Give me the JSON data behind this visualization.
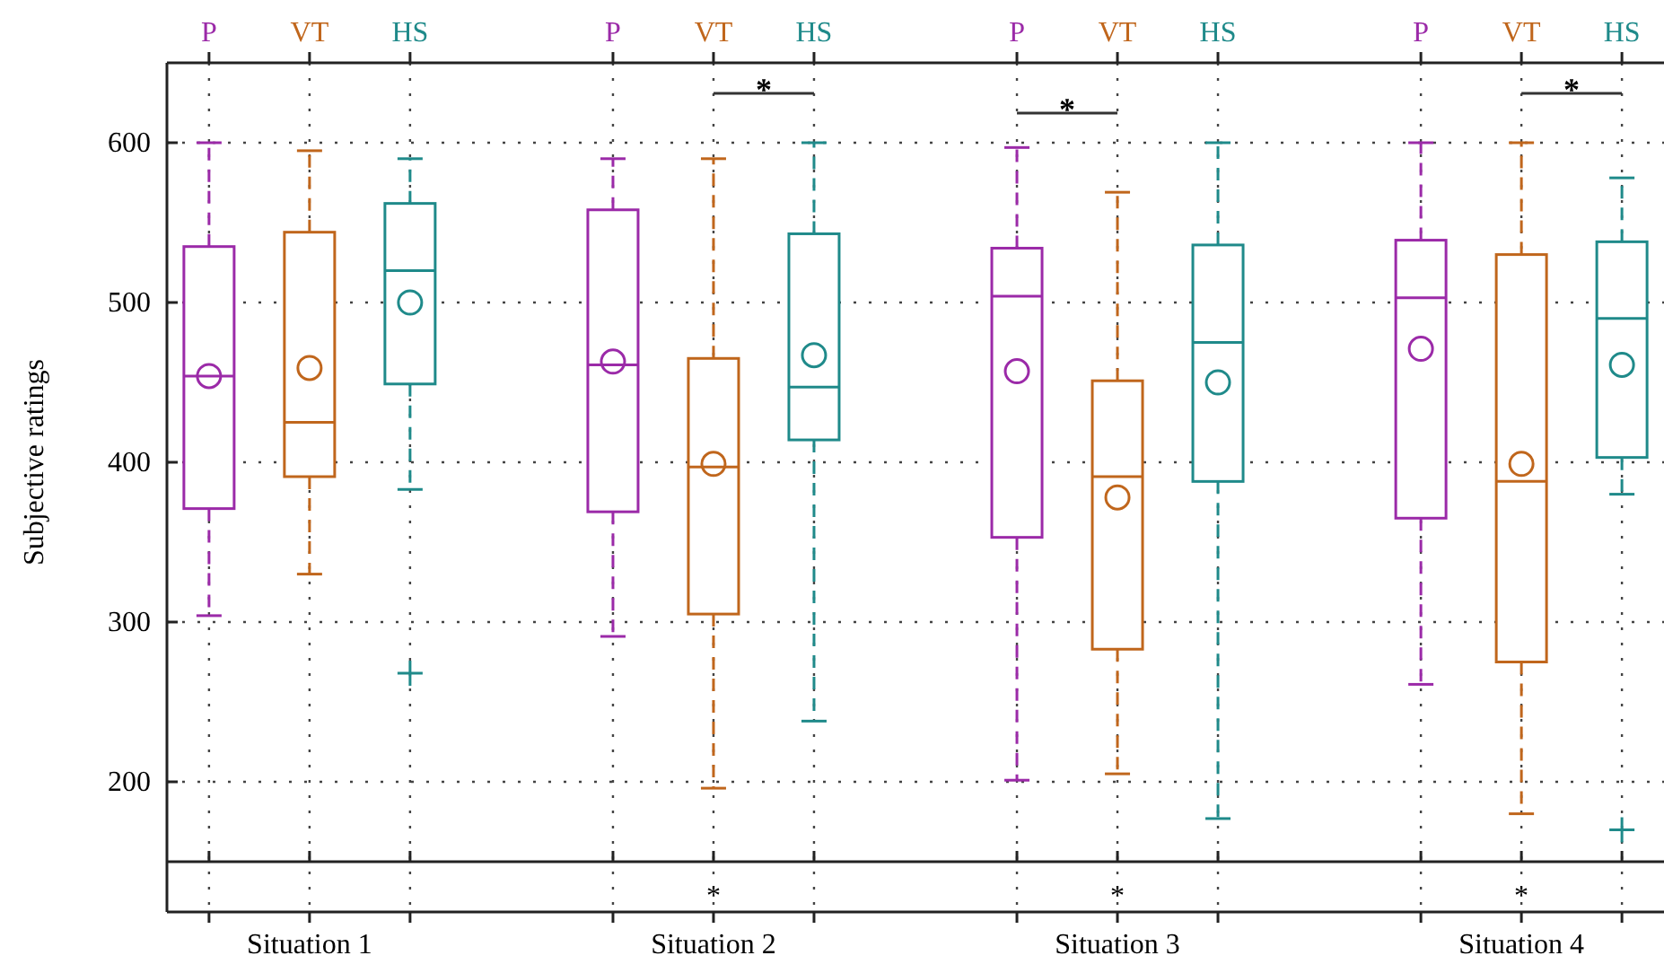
{
  "chart_data": {
    "type": "box",
    "ylabel": "Subjective ratings",
    "categories": [
      "Situation 1",
      "Situation 2",
      "Situation 3",
      "Situation 4"
    ],
    "ylim": [
      150,
      650
    ],
    "yticks": [
      200,
      300,
      400,
      500,
      600
    ],
    "grid": true,
    "line_style": "dashed",
    "marker": "circle",
    "series": [
      {
        "name": "P",
        "color": "#9b2aa8",
        "boxes": [
          {
            "low": 304,
            "q1": 371,
            "median": 454,
            "q3": 535,
            "high": 600,
            "mean": 454
          },
          {
            "low": 291,
            "q1": 369,
            "median": 461,
            "q3": 558,
            "high": 590,
            "mean": 463
          },
          {
            "low": 201,
            "q1": 353,
            "median": 504,
            "q3": 534,
            "high": 597,
            "mean": 457
          },
          {
            "low": 261,
            "q1": 365,
            "median": 503,
            "q3": 539,
            "high": 600,
            "mean": 471
          }
        ]
      },
      {
        "name": "VT",
        "color": "#c0661c",
        "boxes": [
          {
            "low": 330,
            "q1": 391,
            "median": 425,
            "q3": 544,
            "high": 595,
            "mean": 459
          },
          {
            "low": 196,
            "q1": 305,
            "median": 397,
            "q3": 465,
            "high": 590,
            "mean": 399
          },
          {
            "low": 205,
            "q1": 283,
            "median": 391,
            "q3": 451,
            "high": 569,
            "mean": 378
          },
          {
            "low": 180,
            "q1": 275,
            "median": 388,
            "q3": 530,
            "high": 600,
            "mean": 399
          }
        ]
      },
      {
        "name": "HS",
        "color": "#1f8a8a",
        "boxes": [
          {
            "low": 383,
            "q1": 449,
            "median": 520,
            "q3": 562,
            "high": 590,
            "mean": 500,
            "outliers": [
              268
            ]
          },
          {
            "low": 238,
            "q1": 414,
            "median": 447,
            "q3": 543,
            "high": 600,
            "mean": 467
          },
          {
            "low": 177,
            "q1": 388,
            "median": 475,
            "q3": 536,
            "high": 600,
            "mean": 450
          },
          {
            "low": 380,
            "q1": 403,
            "median": 490,
            "q3": 538,
            "high": 578,
            "mean": 461,
            "outliers": [
              170
            ]
          }
        ]
      }
    ],
    "annotations": [
      "*",
      "*",
      "*",
      "*",
      "*",
      "*"
    ]
  }
}
